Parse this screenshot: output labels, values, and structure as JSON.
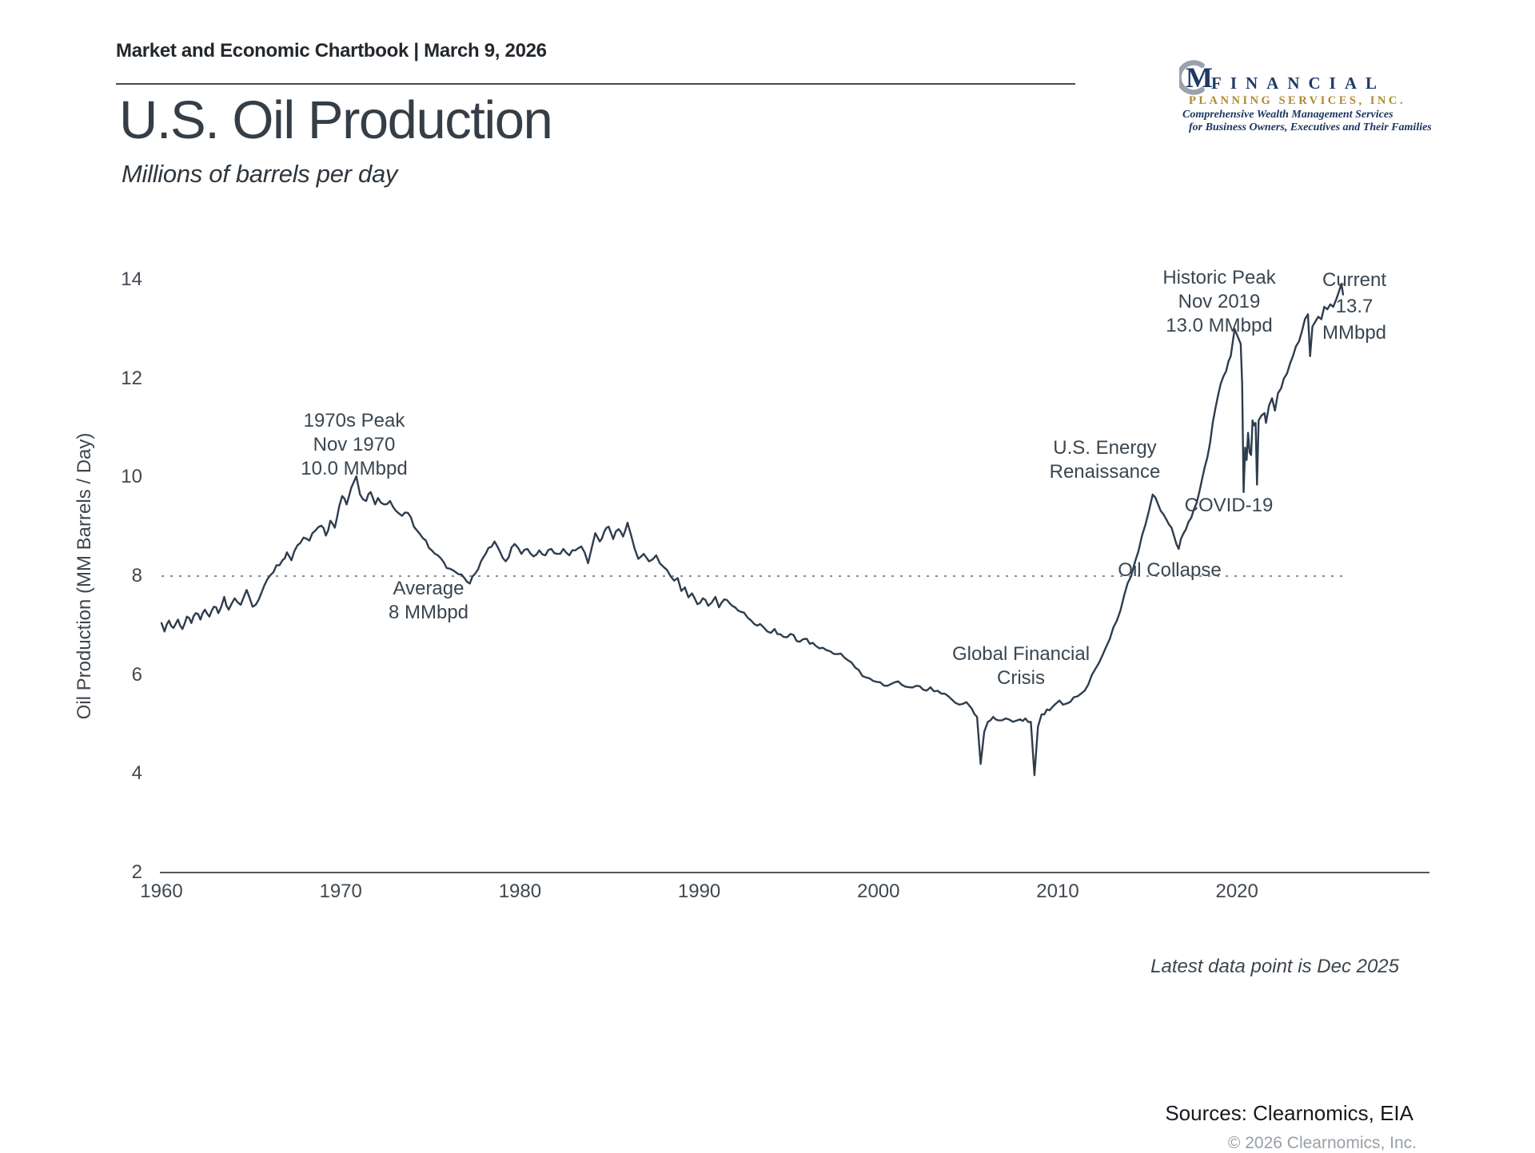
{
  "header": {
    "title": "Market and Economic Chartbook | March 9, 2026"
  },
  "logo": {
    "monogram": "M",
    "name_line": "FINANCIAL",
    "subname_line": "PLANNING SERVICES, INC.",
    "tagline1": "Comprehensive Wealth Management Services",
    "tagline2": "for Business Owners, Executives and Their Families",
    "colors": {
      "navy": "#1e3a66",
      "gold": "#b0892e",
      "arc_gray": "#9aa2ab"
    }
  },
  "page": {
    "title": "U.S. Oil Production",
    "subtitle": "Millions of barrels per day"
  },
  "chart_data": {
    "type": "line",
    "title": "U.S. Oil Production",
    "subtitle": "Millions of barrels per day",
    "ylabel": "Oil Production (MM Barrels / Day)",
    "xlabel": "",
    "x_ticks": [
      1960,
      1970,
      1980,
      1990,
      2000,
      2010,
      2020
    ],
    "y_ticks": [
      2,
      4,
      6,
      8,
      10,
      12,
      14
    ],
    "xlim": [
      1960,
      2031
    ],
    "ylim": [
      2,
      14
    ],
    "grid": false,
    "legend": "none",
    "line_color": "#2e3d4e",
    "average_line": {
      "value": 8.0,
      "style": "dotted",
      "color": "#878d93"
    },
    "annotations": [
      {
        "id": "peak_1970",
        "lines": [
          "1970s Peak",
          "Nov 1970",
          "10.0 MMbpd"
        ]
      },
      {
        "id": "average",
        "lines": [
          "Average",
          "8 MMbpd"
        ]
      },
      {
        "id": "gfc",
        "lines": [
          "Global Financial",
          "Crisis"
        ]
      },
      {
        "id": "energy_renaissance",
        "lines": [
          "U.S. Energy",
          "Renaissance"
        ]
      },
      {
        "id": "oil_collapse",
        "lines": [
          "Oil Collapse"
        ]
      },
      {
        "id": "covid_19",
        "lines": [
          "COVID-19"
        ]
      },
      {
        "id": "historic_peak",
        "lines": [
          "Historic Peak",
          "Nov 2019",
          "13.0 MMbpd"
        ]
      },
      {
        "id": "current",
        "lines": [
          "Current",
          "13.7",
          "MMbpd"
        ]
      }
    ],
    "key_points": {
      "peak_1970": {
        "date": "Nov 1970",
        "value": 10.0
      },
      "average": 8.0,
      "historic_peak": {
        "date": "Nov 2019",
        "value": 13.0
      },
      "current": {
        "date": "Dec 2025",
        "value": 13.7
      }
    },
    "series": [
      {
        "name": "U.S. Oil Production (MM Barrels / Day)",
        "points": [
          [
            1960.0,
            7.05
          ],
          [
            1960.17,
            6.88
          ],
          [
            1960.42,
            7.1
          ],
          [
            1960.67,
            6.95
          ],
          [
            1960.92,
            7.12
          ],
          [
            1961.17,
            6.93
          ],
          [
            1961.42,
            7.18
          ],
          [
            1961.67,
            7.05
          ],
          [
            1961.92,
            7.25
          ],
          [
            1962.17,
            7.12
          ],
          [
            1962.42,
            7.32
          ],
          [
            1962.67,
            7.18
          ],
          [
            1962.92,
            7.38
          ],
          [
            1963.17,
            7.25
          ],
          [
            1963.5,
            7.58
          ],
          [
            1963.75,
            7.32
          ],
          [
            1964.08,
            7.55
          ],
          [
            1964.42,
            7.42
          ],
          [
            1964.75,
            7.72
          ],
          [
            1965.08,
            7.38
          ],
          [
            1965.42,
            7.52
          ],
          [
            1965.75,
            7.82
          ],
          [
            1966.08,
            8.02
          ],
          [
            1966.42,
            8.22
          ],
          [
            1966.75,
            8.32
          ],
          [
            1967.0,
            8.48
          ],
          [
            1967.25,
            8.32
          ],
          [
            1967.58,
            8.62
          ],
          [
            1967.92,
            8.78
          ],
          [
            1968.25,
            8.72
          ],
          [
            1968.58,
            8.92
          ],
          [
            1968.92,
            9.02
          ],
          [
            1969.17,
            8.82
          ],
          [
            1969.42,
            9.12
          ],
          [
            1969.67,
            8.98
          ],
          [
            1969.92,
            9.42
          ],
          [
            1970.08,
            9.62
          ],
          [
            1970.33,
            9.45
          ],
          [
            1970.58,
            9.78
          ],
          [
            1970.87,
            10.02
          ],
          [
            1971.08,
            9.65
          ],
          [
            1971.42,
            9.52
          ],
          [
            1971.67,
            9.7
          ],
          [
            1971.92,
            9.45
          ],
          [
            1972.08,
            9.58
          ],
          [
            1972.42,
            9.45
          ],
          [
            1972.75,
            9.52
          ],
          [
            1973.08,
            9.32
          ],
          [
            1973.42,
            9.22
          ],
          [
            1973.75,
            9.28
          ],
          [
            1974.08,
            9.0
          ],
          [
            1974.42,
            8.85
          ],
          [
            1974.75,
            8.72
          ],
          [
            1975.08,
            8.52
          ],
          [
            1975.42,
            8.42
          ],
          [
            1975.75,
            8.28
          ],
          [
            1976.08,
            8.15
          ],
          [
            1976.42,
            8.08
          ],
          [
            1976.9,
            7.96
          ],
          [
            1977.2,
            7.85
          ],
          [
            1977.5,
            8.05
          ],
          [
            1977.83,
            8.3
          ],
          [
            1978.08,
            8.45
          ],
          [
            1978.58,
            8.7
          ],
          [
            1979.2,
            8.3
          ],
          [
            1979.7,
            8.65
          ],
          [
            1980.08,
            8.45
          ],
          [
            1980.42,
            8.55
          ],
          [
            1980.75,
            8.4
          ],
          [
            1981.08,
            8.52
          ],
          [
            1981.42,
            8.42
          ],
          [
            1981.75,
            8.55
          ],
          [
            1982.08,
            8.45
          ],
          [
            1982.42,
            8.55
          ],
          [
            1982.75,
            8.42
          ],
          [
            1983.08,
            8.52
          ],
          [
            1983.42,
            8.6
          ],
          [
            1983.8,
            8.26
          ],
          [
            1984.2,
            8.87
          ],
          [
            1984.45,
            8.7
          ],
          [
            1984.7,
            8.9
          ],
          [
            1984.95,
            9.0
          ],
          [
            1985.2,
            8.75
          ],
          [
            1985.5,
            8.95
          ],
          [
            1985.75,
            8.8
          ],
          [
            1986.0,
            9.08
          ],
          [
            1986.4,
            8.55
          ],
          [
            1986.6,
            8.35
          ],
          [
            1986.9,
            8.45
          ],
          [
            1987.2,
            8.3
          ],
          [
            1987.6,
            8.42
          ],
          [
            1988.0,
            8.19
          ],
          [
            1988.4,
            8.0
          ],
          [
            1988.6,
            7.91
          ],
          [
            1988.8,
            7.96
          ],
          [
            1989.0,
            7.7
          ],
          [
            1989.2,
            7.77
          ],
          [
            1989.4,
            7.57
          ],
          [
            1989.6,
            7.65
          ],
          [
            1989.9,
            7.43
          ],
          [
            1990.2,
            7.55
          ],
          [
            1990.5,
            7.4
          ],
          [
            1990.9,
            7.58
          ],
          [
            1991.1,
            7.37
          ],
          [
            1991.4,
            7.53
          ],
          [
            1991.7,
            7.45
          ],
          [
            1992.0,
            7.37
          ],
          [
            1992.5,
            7.26
          ],
          [
            1992.9,
            7.1
          ],
          [
            1993.4,
            7.03
          ],
          [
            1993.8,
            6.88
          ],
          [
            1994.2,
            6.93
          ],
          [
            1994.7,
            6.77
          ],
          [
            1995.1,
            6.83
          ],
          [
            1995.6,
            6.67
          ],
          [
            1996.0,
            6.73
          ],
          [
            1996.5,
            6.59
          ],
          [
            1996.9,
            6.55
          ],
          [
            1997.3,
            6.48
          ],
          [
            1997.7,
            6.42
          ],
          [
            1998.1,
            6.35
          ],
          [
            1998.5,
            6.25
          ],
          [
            1998.9,
            6.1
          ],
          [
            1999.3,
            5.95
          ],
          [
            1999.7,
            5.88
          ],
          [
            2000.1,
            5.85
          ],
          [
            2000.5,
            5.78
          ],
          [
            2000.9,
            5.85
          ],
          [
            2001.3,
            5.8
          ],
          [
            2001.7,
            5.75
          ],
          [
            2002.1,
            5.78
          ],
          [
            2002.5,
            5.7
          ],
          [
            2002.9,
            5.75
          ],
          [
            2003.3,
            5.68
          ],
          [
            2003.7,
            5.62
          ],
          [
            2004.1,
            5.5
          ],
          [
            2004.5,
            5.4
          ],
          [
            2004.9,
            5.45
          ],
          [
            2005.2,
            5.32
          ],
          [
            2005.5,
            5.15
          ],
          [
            2005.7,
            4.2
          ],
          [
            2005.9,
            4.85
          ],
          [
            2006.1,
            5.05
          ],
          [
            2006.4,
            5.15
          ],
          [
            2006.7,
            5.08
          ],
          [
            2007.1,
            5.12
          ],
          [
            2007.5,
            5.05
          ],
          [
            2007.9,
            5.1
          ],
          [
            2008.2,
            5.12
          ],
          [
            2008.5,
            5.05
          ],
          [
            2008.7,
            3.97
          ],
          [
            2008.9,
            4.95
          ],
          [
            2009.1,
            5.2
          ],
          [
            2009.4,
            5.3
          ],
          [
            2009.7,
            5.35
          ],
          [
            2010.1,
            5.48
          ],
          [
            2010.5,
            5.42
          ],
          [
            2010.9,
            5.55
          ],
          [
            2011.3,
            5.62
          ],
          [
            2011.7,
            5.8
          ],
          [
            2012.1,
            6.12
          ],
          [
            2012.5,
            6.4
          ],
          [
            2012.9,
            6.72
          ],
          [
            2013.3,
            7.1
          ],
          [
            2013.7,
            7.6
          ],
          [
            2014.1,
            8.0
          ],
          [
            2014.5,
            8.5
          ],
          [
            2014.9,
            9.05
          ],
          [
            2015.3,
            9.65
          ],
          [
            2015.6,
            9.45
          ],
          [
            2015.9,
            9.25
          ],
          [
            2016.2,
            9.05
          ],
          [
            2016.5,
            8.8
          ],
          [
            2016.75,
            8.55
          ],
          [
            2017.0,
            8.85
          ],
          [
            2017.3,
            9.1
          ],
          [
            2017.6,
            9.35
          ],
          [
            2017.9,
            9.7
          ],
          [
            2018.2,
            10.2
          ],
          [
            2018.5,
            10.7
          ],
          [
            2018.8,
            11.4
          ],
          [
            2019.1,
            11.9
          ],
          [
            2019.4,
            12.15
          ],
          [
            2019.65,
            12.45
          ],
          [
            2019.87,
            13.0
          ],
          [
            2020.04,
            12.85
          ],
          [
            2020.21,
            12.7
          ],
          [
            2020.29,
            11.9
          ],
          [
            2020.37,
            9.7
          ],
          [
            2020.46,
            10.6
          ],
          [
            2020.54,
            10.35
          ],
          [
            2020.62,
            10.9
          ],
          [
            2020.71,
            10.5
          ],
          [
            2020.79,
            10.45
          ],
          [
            2020.87,
            11.15
          ],
          [
            2020.96,
            11.05
          ],
          [
            2021.04,
            11.1
          ],
          [
            2021.12,
            9.85
          ],
          [
            2021.21,
            11.15
          ],
          [
            2021.37,
            11.25
          ],
          [
            2021.54,
            11.3
          ],
          [
            2021.62,
            11.1
          ],
          [
            2021.79,
            11.45
          ],
          [
            2021.96,
            11.6
          ],
          [
            2022.12,
            11.35
          ],
          [
            2022.29,
            11.7
          ],
          [
            2022.46,
            11.8
          ],
          [
            2022.62,
            12.0
          ],
          [
            2022.79,
            12.1
          ],
          [
            2022.96,
            12.3
          ],
          [
            2023.12,
            12.45
          ],
          [
            2023.29,
            12.65
          ],
          [
            2023.46,
            12.75
          ],
          [
            2023.62,
            12.95
          ],
          [
            2023.79,
            13.2
          ],
          [
            2023.96,
            13.3
          ],
          [
            2024.08,
            12.45
          ],
          [
            2024.21,
            13.05
          ],
          [
            2024.37,
            13.15
          ],
          [
            2024.54,
            13.25
          ],
          [
            2024.71,
            13.2
          ],
          [
            2024.87,
            13.45
          ],
          [
            2025.04,
            13.4
          ],
          [
            2025.21,
            13.5
          ],
          [
            2025.37,
            13.45
          ],
          [
            2025.54,
            13.6
          ],
          [
            2025.71,
            13.78
          ],
          [
            2025.83,
            13.92
          ],
          [
            2025.92,
            13.7
          ]
        ]
      }
    ],
    "footnote": "Latest data point is Dec 2025"
  },
  "footer": {
    "latest_note": "Latest data point is Dec 2025",
    "sources": "Sources: Clearnomics, EIA",
    "copyright": "© 2026 Clearnomics, Inc."
  }
}
